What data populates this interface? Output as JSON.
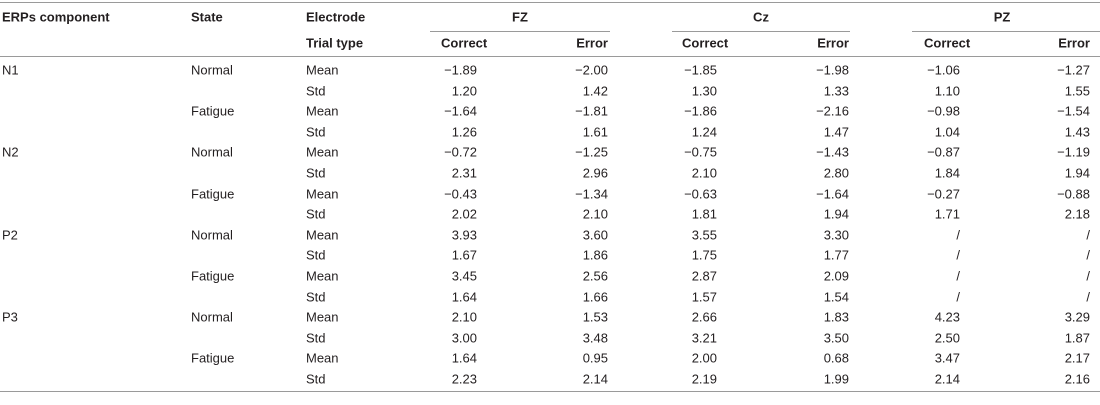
{
  "header": {
    "component": "ERPs component",
    "state": "State",
    "electrode": "Electrode",
    "trial_type": "Trial type",
    "electrodes": [
      "FZ",
      "Cz",
      "PZ"
    ],
    "trial_types": [
      "Correct",
      "Error",
      "Correct",
      "Error",
      "Correct",
      "Error"
    ]
  },
  "groups": [
    {
      "component": "N1",
      "states": [
        {
          "state": "Normal",
          "rows": [
            {
              "stat": "Mean",
              "values": [
                "−1.89",
                "−2.00",
                "−1.85",
                "−1.98",
                "−1.06",
                "−1.27"
              ]
            },
            {
              "stat": "Std",
              "values": [
                "1.20",
                "1.42",
                "1.30",
                "1.33",
                "1.10",
                "1.55"
              ]
            }
          ]
        },
        {
          "state": "Fatigue",
          "rows": [
            {
              "stat": "Mean",
              "values": [
                "−1.64",
                "−1.81",
                "−1.86",
                "−2.16",
                "−0.98",
                "−1.54"
              ]
            },
            {
              "stat": "Std",
              "values": [
                "1.26",
                "1.61",
                "1.24",
                "1.47",
                "1.04",
                "1.43"
              ]
            }
          ]
        }
      ]
    },
    {
      "component": "N2",
      "states": [
        {
          "state": "Normal",
          "rows": [
            {
              "stat": "Mean",
              "values": [
                "−0.72",
                "−1.25",
                "−0.75",
                "−1.43",
                "−0.87",
                "−1.19"
              ]
            },
            {
              "stat": "Std",
              "values": [
                "2.31",
                "2.96",
                "2.10",
                "2.80",
                "1.84",
                "1.94"
              ]
            }
          ]
        },
        {
          "state": "Fatigue",
          "rows": [
            {
              "stat": "Mean",
              "values": [
                "−0.43",
                "−1.34",
                "−0.63",
                "−1.64",
                "−0.27",
                "−0.88"
              ]
            },
            {
              "stat": "Std",
              "values": [
                "2.02",
                "2.10",
                "1.81",
                "1.94",
                "1.71",
                "2.18"
              ]
            }
          ]
        }
      ]
    },
    {
      "component": "P2",
      "states": [
        {
          "state": "Normal",
          "rows": [
            {
              "stat": "Mean",
              "values": [
                "3.93",
                "3.60",
                "3.55",
                "3.30",
                "/",
                "/"
              ]
            },
            {
              "stat": "Std",
              "values": [
                "1.67",
                "1.86",
                "1.75",
                "1.77",
                "/",
                "/"
              ]
            }
          ]
        },
        {
          "state": "Fatigue",
          "rows": [
            {
              "stat": "Mean",
              "values": [
                "3.45",
                "2.56",
                "2.87",
                "2.09",
                "/",
                "/"
              ]
            },
            {
              "stat": "Std",
              "values": [
                "1.64",
                "1.66",
                "1.57",
                "1.54",
                "/",
                "/"
              ]
            }
          ]
        }
      ]
    },
    {
      "component": "P3",
      "states": [
        {
          "state": "Normal",
          "rows": [
            {
              "stat": "Mean",
              "values": [
                "2.10",
                "1.53",
                "2.66",
                "1.83",
                "4.23",
                "3.29"
              ]
            },
            {
              "stat": "Std",
              "values": [
                "3.00",
                "3.48",
                "3.21",
                "3.50",
                "2.50",
                "1.87"
              ]
            }
          ]
        },
        {
          "state": "Fatigue",
          "rows": [
            {
              "stat": "Mean",
              "values": [
                "1.64",
                "0.95",
                "2.00",
                "0.68",
                "3.47",
                "2.17"
              ]
            },
            {
              "stat": "Std",
              "values": [
                "2.23",
                "2.14",
                "2.19",
                "1.99",
                "2.14",
                "2.16"
              ]
            }
          ]
        }
      ]
    }
  ]
}
